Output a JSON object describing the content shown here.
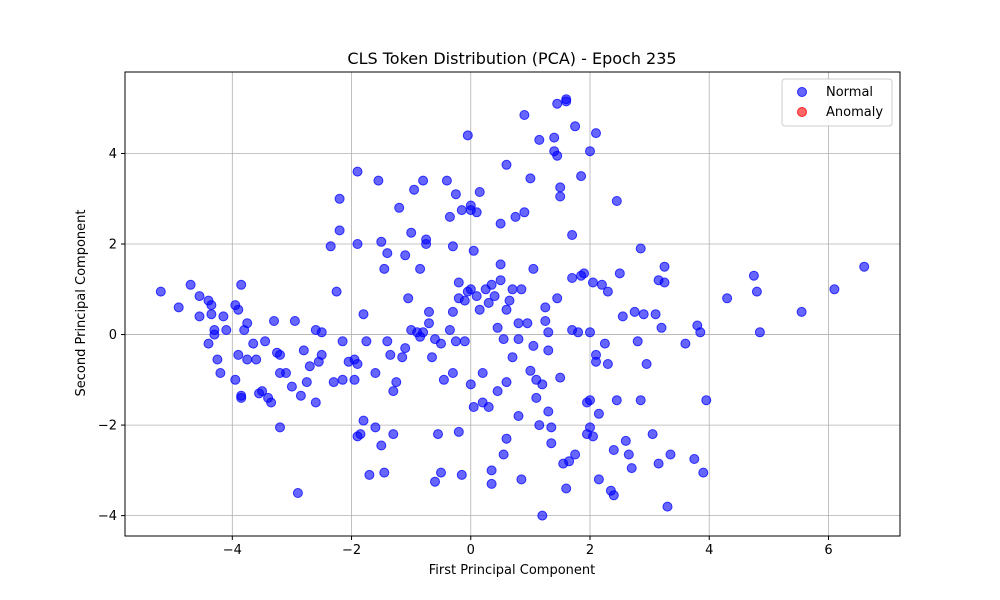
{
  "chart_data": {
    "type": "scatter",
    "title": "CLS Token Distribution (PCA) - Epoch 235",
    "xlabel": "First Principal Component",
    "ylabel": "Second Principal Component",
    "xlim": [
      -5.8,
      7.2
    ],
    "ylim": [
      -4.45,
      5.8
    ],
    "xticks": [
      -4,
      -2,
      0,
      2,
      4,
      6
    ],
    "yticks": [
      -4,
      -2,
      0,
      2,
      4
    ],
    "grid": true,
    "legend_position": "top-right",
    "colors": {
      "Normal": "#0000ff",
      "Anomaly": "#ff0000"
    },
    "series": [
      {
        "name": "Normal",
        "points": [
          [
            -5.2,
            0.95
          ],
          [
            -4.9,
            0.6
          ],
          [
            -4.7,
            1.1
          ],
          [
            -4.55,
            0.85
          ],
          [
            -4.55,
            0.4
          ],
          [
            -4.4,
            0.75
          ],
          [
            -4.35,
            0.45
          ],
          [
            -4.35,
            0.65
          ],
          [
            -4.3,
            0.1
          ],
          [
            -4.3,
            0.0
          ],
          [
            -4.25,
            -0.55
          ],
          [
            -4.2,
            -0.85
          ],
          [
            -4.15,
            0.4
          ],
          [
            -4.1,
            0.1
          ],
          [
            -4.4,
            -0.2
          ],
          [
            -3.95,
            0.65
          ],
          [
            -3.9,
            0.55
          ],
          [
            -3.85,
            1.1
          ],
          [
            -3.9,
            -0.45
          ],
          [
            -3.95,
            -1.0
          ],
          [
            -3.85,
            -1.35
          ],
          [
            -3.85,
            -1.4
          ],
          [
            -3.8,
            0.1
          ],
          [
            -3.75,
            0.25
          ],
          [
            -3.75,
            -0.55
          ],
          [
            -3.65,
            -0.2
          ],
          [
            -3.6,
            -0.55
          ],
          [
            -3.55,
            -1.3
          ],
          [
            -3.5,
            -1.25
          ],
          [
            -3.45,
            -0.15
          ],
          [
            -3.4,
            -1.4
          ],
          [
            -3.35,
            -1.5
          ],
          [
            -3.3,
            0.3
          ],
          [
            -3.25,
            -0.4
          ],
          [
            -3.2,
            -0.45
          ],
          [
            -3.2,
            -0.85
          ],
          [
            -3.2,
            -2.05
          ],
          [
            -3.1,
            -0.85
          ],
          [
            -3.0,
            -1.15
          ],
          [
            -2.95,
            0.3
          ],
          [
            -2.9,
            -3.5
          ],
          [
            -2.85,
            -1.35
          ],
          [
            -2.8,
            -0.35
          ],
          [
            -2.75,
            -1.05
          ],
          [
            -2.7,
            -0.7
          ],
          [
            -2.6,
            -1.5
          ],
          [
            -2.6,
            0.1
          ],
          [
            -2.55,
            -0.6
          ],
          [
            -2.5,
            -0.45
          ],
          [
            -2.5,
            0.05
          ],
          [
            -2.35,
            1.95
          ],
          [
            -2.3,
            -1.05
          ],
          [
            -2.25,
            0.95
          ],
          [
            -2.2,
            2.3
          ],
          [
            -2.2,
            3.0
          ],
          [
            -2.15,
            -0.15
          ],
          [
            -2.15,
            -1.0
          ],
          [
            -2.05,
            -0.6
          ],
          [
            -1.95,
            -0.55
          ],
          [
            -1.95,
            -1.0
          ],
          [
            -1.9,
            3.6
          ],
          [
            -1.9,
            2.0
          ],
          [
            -1.9,
            -0.65
          ],
          [
            -1.9,
            -2.25
          ],
          [
            -1.85,
            -2.2
          ],
          [
            -1.8,
            -1.9
          ],
          [
            -1.8,
            0.45
          ],
          [
            -1.75,
            -0.15
          ],
          [
            -1.7,
            -3.1
          ],
          [
            -1.6,
            -2.05
          ],
          [
            -1.6,
            -0.85
          ],
          [
            -1.55,
            3.4
          ],
          [
            -1.5,
            2.05
          ],
          [
            -1.5,
            -2.45
          ],
          [
            -1.45,
            1.45
          ],
          [
            -1.45,
            -3.05
          ],
          [
            -1.4,
            -0.15
          ],
          [
            -1.4,
            1.8
          ],
          [
            -1.35,
            -0.45
          ],
          [
            -1.3,
            -1.25
          ],
          [
            -1.3,
            -2.2
          ],
          [
            -1.25,
            -1.05
          ],
          [
            -1.2,
            2.8
          ],
          [
            -1.15,
            -0.5
          ],
          [
            -1.1,
            -0.3
          ],
          [
            -1.1,
            1.75
          ],
          [
            -1.05,
            0.8
          ],
          [
            -1.0,
            0.1
          ],
          [
            -1.0,
            2.25
          ],
          [
            -0.95,
            3.2
          ],
          [
            -0.9,
            0.05
          ],
          [
            -0.85,
            -0.05
          ],
          [
            -0.85,
            1.45
          ],
          [
            -0.8,
            0.05
          ],
          [
            -0.8,
            3.4
          ],
          [
            -0.75,
            2.1
          ],
          [
            -0.75,
            2.0
          ],
          [
            -0.7,
            0.5
          ],
          [
            -0.7,
            0.25
          ],
          [
            -0.65,
            -0.5
          ],
          [
            -0.6,
            -3.25
          ],
          [
            -0.6,
            -0.1
          ],
          [
            -0.55,
            -2.2
          ],
          [
            -0.5,
            -0.2
          ],
          [
            -0.5,
            -3.05
          ],
          [
            -0.45,
            -1.0
          ],
          [
            -0.4,
            3.4
          ],
          [
            -0.35,
            2.6
          ],
          [
            -0.35,
            0.1
          ],
          [
            -0.3,
            0.5
          ],
          [
            -0.3,
            1.95
          ],
          [
            -0.3,
            -0.85
          ],
          [
            -0.25,
            3.1
          ],
          [
            -0.25,
            -0.15
          ],
          [
            -0.2,
            1.15
          ],
          [
            -0.2,
            -2.15
          ],
          [
            -0.2,
            0.8
          ],
          [
            -0.15,
            2.75
          ],
          [
            -0.15,
            -3.1
          ],
          [
            -0.1,
            0.75
          ],
          [
            -0.1,
            -0.15
          ],
          [
            -0.05,
            0.95
          ],
          [
            -0.05,
            4.4
          ],
          [
            0.0,
            2.75
          ],
          [
            0.0,
            2.85
          ],
          [
            0.0,
            1.0
          ],
          [
            0.0,
            -1.1
          ],
          [
            0.05,
            -1.6
          ],
          [
            0.05,
            1.85
          ],
          [
            0.1,
            2.7
          ],
          [
            0.1,
            0.85
          ],
          [
            0.15,
            0.55
          ],
          [
            0.15,
            3.15
          ],
          [
            0.2,
            -0.85
          ],
          [
            0.2,
            -1.5
          ],
          [
            0.25,
            1.0
          ],
          [
            0.3,
            0.7
          ],
          [
            0.3,
            -1.6
          ],
          [
            0.35,
            1.1
          ],
          [
            0.35,
            -3.0
          ],
          [
            0.35,
            -3.3
          ],
          [
            0.4,
            0.85
          ],
          [
            0.45,
            0.15
          ],
          [
            0.45,
            -1.25
          ],
          [
            0.5,
            2.45
          ],
          [
            0.5,
            1.55
          ],
          [
            0.5,
            1.2
          ],
          [
            0.55,
            -2.65
          ],
          [
            0.55,
            -0.1
          ],
          [
            0.6,
            0.55
          ],
          [
            0.6,
            -1.05
          ],
          [
            0.6,
            -2.3
          ],
          [
            0.6,
            3.75
          ],
          [
            0.65,
            0.75
          ],
          [
            0.7,
            -0.5
          ],
          [
            0.7,
            1.0
          ],
          [
            0.75,
            2.6
          ],
          [
            0.8,
            -0.1
          ],
          [
            0.8,
            -1.8
          ],
          [
            0.8,
            0.25
          ],
          [
            0.85,
            1.0
          ],
          [
            0.85,
            -3.2
          ],
          [
            0.9,
            2.7
          ],
          [
            0.9,
            4.85
          ],
          [
            0.95,
            0.25
          ],
          [
            1.0,
            -0.8
          ],
          [
            1.0,
            3.45
          ],
          [
            1.05,
            1.45
          ],
          [
            1.05,
            -0.25
          ],
          [
            1.1,
            -1.0
          ],
          [
            1.1,
            -1.4
          ],
          [
            1.15,
            -2.0
          ],
          [
            1.15,
            4.3
          ],
          [
            1.2,
            -1.1
          ],
          [
            1.2,
            -4.0
          ],
          [
            1.25,
            0.6
          ],
          [
            1.25,
            0.3
          ],
          [
            1.3,
            0.05
          ],
          [
            1.3,
            -0.35
          ],
          [
            1.3,
            -1.7
          ],
          [
            1.35,
            -2.05
          ],
          [
            1.35,
            -2.4
          ],
          [
            1.4,
            4.05
          ],
          [
            1.4,
            4.35
          ],
          [
            1.45,
            0.8
          ],
          [
            1.45,
            3.95
          ],
          [
            1.45,
            5.1
          ],
          [
            1.5,
            3.05
          ],
          [
            1.5,
            3.25
          ],
          [
            1.5,
            -0.95
          ],
          [
            1.55,
            -2.85
          ],
          [
            1.6,
            5.2
          ],
          [
            1.6,
            5.15
          ],
          [
            1.6,
            -3.4
          ],
          [
            1.65,
            -2.8
          ],
          [
            1.7,
            0.1
          ],
          [
            1.7,
            1.25
          ],
          [
            1.7,
            2.2
          ],
          [
            1.75,
            4.6
          ],
          [
            1.75,
            -2.65
          ],
          [
            1.8,
            0.05
          ],
          [
            1.85,
            3.5
          ],
          [
            1.85,
            1.3
          ],
          [
            1.9,
            1.35
          ],
          [
            1.95,
            -2.2
          ],
          [
            1.95,
            -1.5
          ],
          [
            2.0,
            -1.45
          ],
          [
            2.0,
            4.05
          ],
          [
            2.0,
            0.05
          ],
          [
            2.0,
            -2.05
          ],
          [
            2.05,
            1.15
          ],
          [
            2.05,
            -2.25
          ],
          [
            2.1,
            4.45
          ],
          [
            2.1,
            -0.45
          ],
          [
            2.1,
            -0.6
          ],
          [
            2.15,
            -1.75
          ],
          [
            2.15,
            -3.2
          ],
          [
            2.2,
            1.1
          ],
          [
            2.25,
            -0.2
          ],
          [
            2.3,
            -0.65
          ],
          [
            2.3,
            0.95
          ],
          [
            2.35,
            -3.45
          ],
          [
            2.4,
            -3.55
          ],
          [
            2.4,
            -2.55
          ],
          [
            2.45,
            2.95
          ],
          [
            2.45,
            -1.45
          ],
          [
            2.5,
            1.35
          ],
          [
            2.55,
            0.4
          ],
          [
            2.6,
            -2.35
          ],
          [
            2.65,
            -2.65
          ],
          [
            2.7,
            -2.95
          ],
          [
            2.75,
            0.5
          ],
          [
            2.8,
            -0.15
          ],
          [
            2.85,
            -1.45
          ],
          [
            2.85,
            1.9
          ],
          [
            2.9,
            0.45
          ],
          [
            2.95,
            -0.65
          ],
          [
            3.05,
            -2.2
          ],
          [
            3.1,
            0.45
          ],
          [
            3.15,
            1.2
          ],
          [
            3.15,
            -2.85
          ],
          [
            3.2,
            0.15
          ],
          [
            3.25,
            1.15
          ],
          [
            3.25,
            1.5
          ],
          [
            3.3,
            -3.8
          ],
          [
            3.35,
            -2.65
          ],
          [
            3.6,
            -0.2
          ],
          [
            3.75,
            -2.75
          ],
          [
            3.8,
            0.2
          ],
          [
            3.85,
            0.05
          ],
          [
            3.9,
            -3.05
          ],
          [
            3.95,
            -1.45
          ],
          [
            4.3,
            0.8
          ],
          [
            4.75,
            1.3
          ],
          [
            4.8,
            0.95
          ],
          [
            4.85,
            0.05
          ],
          [
            5.55,
            0.5
          ],
          [
            6.1,
            1.0
          ],
          [
            6.6,
            1.5
          ]
        ]
      },
      {
        "name": "Anomaly",
        "points": []
      }
    ]
  }
}
